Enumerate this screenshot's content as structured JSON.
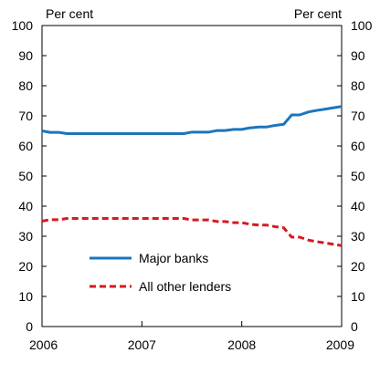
{
  "chart_data": {
    "type": "line",
    "unit_left": "Per cent",
    "unit_right": "Per cent",
    "x_ticks": [
      "2006",
      "2007",
      "2008",
      "2009"
    ],
    "xlim": [
      2006,
      2009
    ],
    "ylim": [
      0,
      100
    ],
    "y_ticks": [
      "0",
      "10",
      "20",
      "30",
      "40",
      "50",
      "60",
      "70",
      "80",
      "90",
      "100"
    ],
    "grid": false,
    "legend_position": "lower-left inside plot",
    "series": [
      {
        "name": "Major banks",
        "color": "#1b75bc",
        "style": "solid",
        "x": [
          2006.0,
          2006.08,
          2006.17,
          2006.25,
          2006.33,
          2006.5,
          2006.67,
          2006.83,
          2007.0,
          2007.17,
          2007.33,
          2007.42,
          2007.5,
          2007.58,
          2007.67,
          2007.75,
          2007.83,
          2007.92,
          2008.0,
          2008.08,
          2008.17,
          2008.25,
          2008.33,
          2008.42,
          2008.5,
          2008.58,
          2008.67,
          2008.75,
          2008.83,
          2008.92,
          2009.0
        ],
        "y": [
          65,
          64.5,
          64.5,
          64.1,
          64.1,
          64.1,
          64.1,
          64.1,
          64.1,
          64.1,
          64.1,
          64.1,
          64.6,
          64.6,
          64.6,
          65.1,
          65.1,
          65.5,
          65.5,
          66.0,
          66.3,
          66.3,
          66.8,
          67.2,
          70.3,
          70.3,
          71.3,
          71.8,
          72.2,
          72.7,
          73.1
        ]
      },
      {
        "name": "All other lenders",
        "color": "#d71920",
        "style": "dashed",
        "x": [
          2006.0,
          2006.08,
          2006.17,
          2006.25,
          2006.33,
          2006.5,
          2006.67,
          2006.83,
          2007.0,
          2007.17,
          2007.33,
          2007.42,
          2007.5,
          2007.58,
          2007.67,
          2007.75,
          2007.83,
          2007.92,
          2008.0,
          2008.08,
          2008.17,
          2008.25,
          2008.33,
          2008.42,
          2008.5,
          2008.58,
          2008.67,
          2008.75,
          2008.83,
          2008.92,
          2009.0
        ],
        "y": [
          35,
          35.5,
          35.5,
          35.9,
          35.9,
          35.9,
          35.9,
          35.9,
          35.9,
          35.9,
          35.9,
          35.9,
          35.4,
          35.4,
          35.4,
          34.9,
          34.9,
          34.5,
          34.5,
          34.0,
          33.7,
          33.7,
          33.2,
          32.8,
          29.7,
          29.7,
          28.7,
          28.2,
          27.8,
          27.3,
          26.9
        ]
      }
    ]
  }
}
